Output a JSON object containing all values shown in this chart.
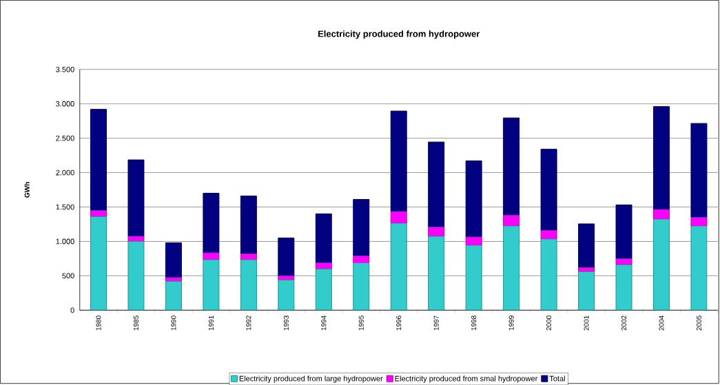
{
  "chart_data": {
    "type": "bar",
    "stacked": true,
    "title": "Electricity produced from hydropower",
    "ylabel": "GWh",
    "categories": [
      "1980",
      "1985",
      "1990",
      "1991",
      "1992",
      "1993",
      "1994",
      "1995",
      "1996",
      "1997",
      "1998",
      "1999",
      "2000",
      "2001",
      "2002",
      "2004",
      "2005"
    ],
    "series": [
      {
        "name": "Electricity produced from large hydropower",
        "color": "#33cccc",
        "values": [
          1360,
          1000,
          420,
          735,
          735,
          440,
          600,
          690,
          1265,
          1075,
          945,
          1225,
          1035,
          560,
          660,
          1325,
          1225
        ]
      },
      {
        "name": "Electricity produced from smal hydropower",
        "color": "#ff00ff",
        "values": [
          90,
          75,
          55,
          100,
          85,
          60,
          90,
          100,
          170,
          135,
          120,
          155,
          125,
          60,
          90,
          140,
          125
        ]
      },
      {
        "name": "Total",
        "color": "#000080",
        "values": [
          1470,
          1110,
          505,
          865,
          840,
          550,
          710,
          820,
          1460,
          1235,
          1105,
          1415,
          1180,
          635,
          780,
          1495,
          1365
        ]
      }
    ],
    "ylim": [
      0,
      3500
    ],
    "yticks": [
      0,
      500,
      {
        "value": 1000,
        "label": "1.000"
      },
      {
        "value": 1500,
        "label": "1.500"
      },
      {
        "value": 2000,
        "label": "2.000"
      },
      {
        "value": 2500,
        "label": "2.500"
      },
      {
        "value": 3000,
        "label": "3.000"
      },
      {
        "value": 3500,
        "label": "3.500"
      }
    ],
    "grid": "y",
    "legend": "bottom"
  }
}
